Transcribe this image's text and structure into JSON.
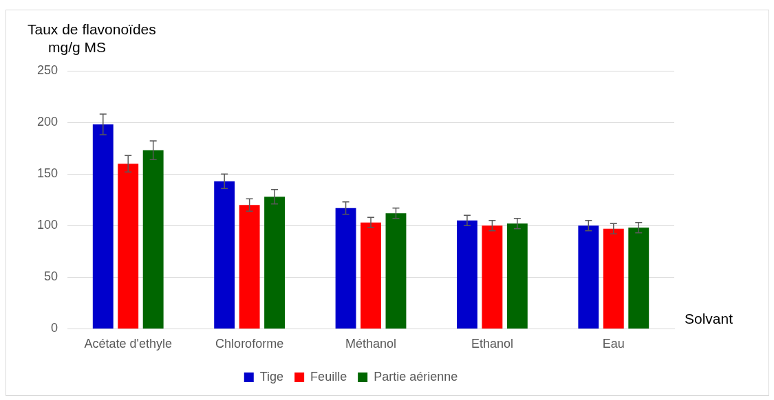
{
  "chart_data": {
    "type": "bar",
    "ylabel": "Taux de flavonoïdes\nmg/g MS",
    "xlabel": "Solvant",
    "categories": [
      "Acétate d'ethyle",
      "Chloroforme",
      "Méthanol",
      "Ethanol",
      "Eau"
    ],
    "series": [
      {
        "name": "Tige",
        "color": "#0000cc",
        "values": [
          198,
          143,
          117,
          105,
          100
        ],
        "errors": [
          10,
          7,
          6,
          5,
          5
        ]
      },
      {
        "name": "Feuille",
        "color": "#ff0000",
        "values": [
          160,
          120,
          103,
          100,
          97
        ],
        "errors": [
          8,
          6,
          5,
          5,
          5
        ]
      },
      {
        "name": "Partie aérienne",
        "color": "#006600",
        "values": [
          173,
          128,
          112,
          102,
          98
        ],
        "errors": [
          9,
          7,
          5,
          5,
          5
        ]
      }
    ],
    "ylim": [
      0,
      250
    ],
    "yticks": [
      0,
      50,
      100,
      150,
      200,
      250
    ],
    "grid": "y",
    "legend": "bottom"
  }
}
